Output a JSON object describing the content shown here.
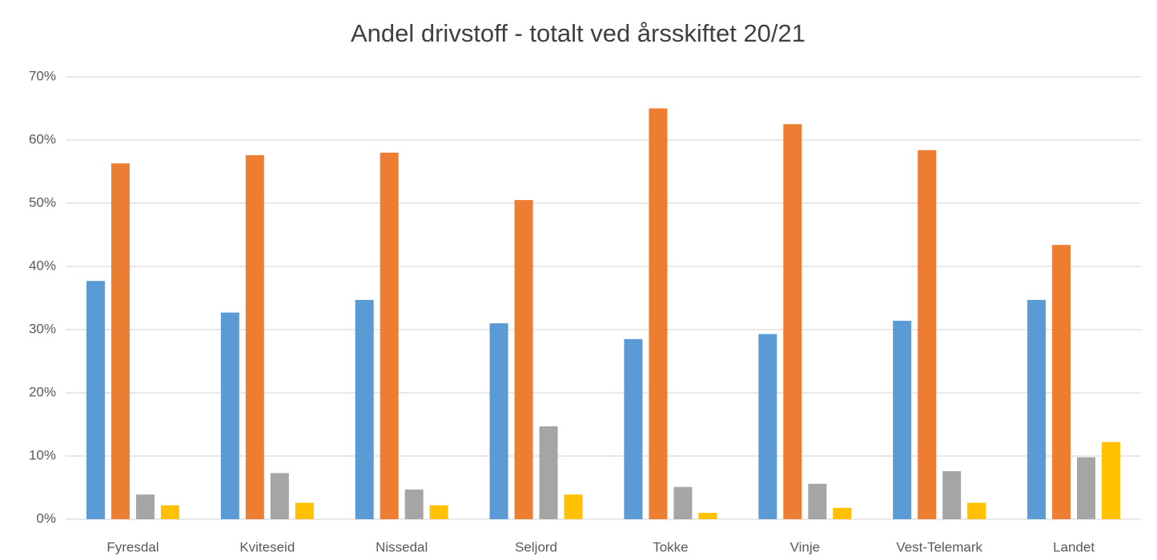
{
  "chart_data": {
    "type": "bar",
    "title": "Andel drivstoff - totalt ved årsskiftet 20/21",
    "categories": [
      "Fyresdal",
      "Kviteseid",
      "Nissedal",
      "Seljord",
      "Tokke",
      "Vinje",
      "Vest-Telemark",
      "Landet"
    ],
    "series": [
      {
        "color": "#5b9bd5",
        "values": [
          37.7,
          32.7,
          34.7,
          31.0,
          28.5,
          29.3,
          31.4,
          34.7
        ]
      },
      {
        "color": "#ed7d31",
        "values": [
          56.3,
          57.6,
          58.0,
          50.5,
          65.0,
          62.5,
          58.4,
          43.4
        ]
      },
      {
        "color": "#a5a5a5",
        "values": [
          3.9,
          7.3,
          4.7,
          14.7,
          5.1,
          5.6,
          7.6,
          9.8
        ]
      },
      {
        "color": "#ffc000",
        "values": [
          2.2,
          2.6,
          2.2,
          3.9,
          1.0,
          1.8,
          2.6,
          12.2
        ]
      }
    ],
    "ylim": [
      0,
      70
    ],
    "yticks": [
      {
        "value": 0,
        "label": "0%"
      },
      {
        "value": 10,
        "label": "10%"
      },
      {
        "value": 20,
        "label": "20%"
      },
      {
        "value": 30,
        "label": "30%"
      },
      {
        "value": 40,
        "label": "40%"
      },
      {
        "value": 50,
        "label": "50%"
      },
      {
        "value": 60,
        "label": "60%"
      },
      {
        "value": 70,
        "label": "70%"
      }
    ],
    "grid": true
  }
}
